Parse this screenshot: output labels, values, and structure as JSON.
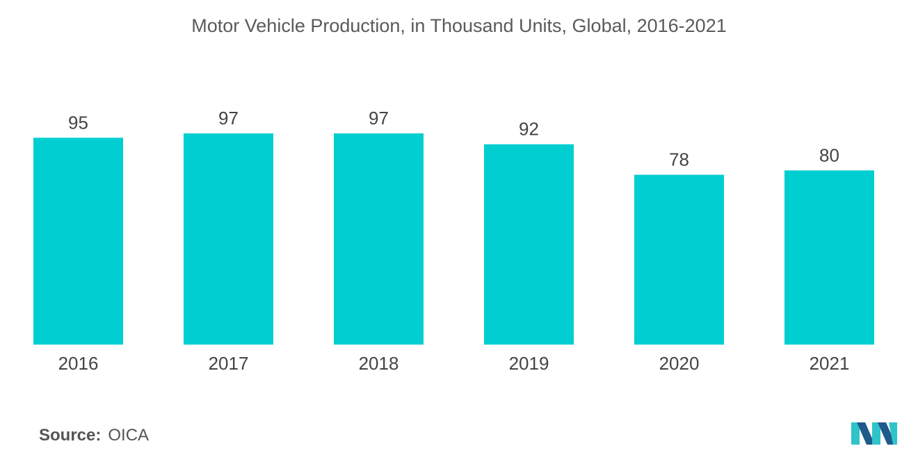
{
  "title": "Motor Vehicle Production, in Thousand Units, Global, 2016-2021",
  "source": {
    "label": "Source:",
    "value": "OICA"
  },
  "colors": {
    "bar": "#00CED1",
    "logo_dark": "#1F5A8C",
    "logo_light": "#2EC4C9"
  },
  "chart_data": {
    "type": "bar",
    "title": "Motor Vehicle Production, in Thousand Units, Global, 2016-2021",
    "xlabel": "",
    "ylabel": "",
    "categories": [
      "2016",
      "2017",
      "2018",
      "2019",
      "2020",
      "2021"
    ],
    "values": [
      95,
      97,
      97,
      92,
      78,
      80
    ],
    "ylim": [
      0,
      97
    ],
    "grid": false,
    "legend": "none"
  }
}
